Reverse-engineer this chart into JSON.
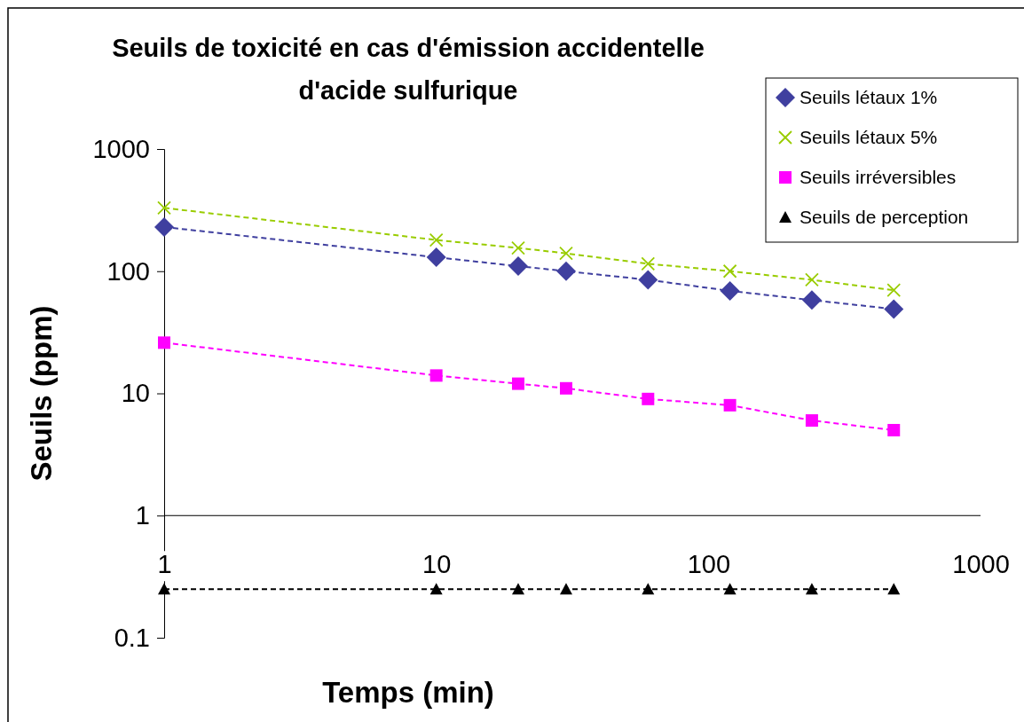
{
  "chart_data": {
    "type": "line",
    "title": "Seuils de toxicité en cas d'émission accidentelle\nd'acide sulfurique",
    "xlabel": "Temps (min)",
    "ylabel": "Seuils (ppm)",
    "log": "xy",
    "x": [
      1,
      10,
      20,
      30,
      60,
      120,
      240,
      480
    ],
    "xlim": [
      1,
      1000
    ],
    "xticks": [
      1,
      10,
      100,
      1000
    ],
    "ylim": [
      0.1,
      1000
    ],
    "yticks": [
      0.1,
      1,
      10,
      100,
      1000
    ],
    "grid": false,
    "legend": "top right",
    "line_style": "dashed",
    "ref_lines": [
      {
        "axis": "y",
        "value": 1,
        "color": "#000000"
      }
    ],
    "series": [
      {
        "name": "Seuils létaux 1%",
        "color": "#3f3f9f",
        "marker": "diamond",
        "values": [
          230,
          130,
          110,
          100,
          85,
          69,
          58,
          49
        ]
      },
      {
        "name": "Seuils létaux 5%",
        "color": "#99cc00",
        "marker": "cross",
        "values": [
          330,
          180,
          155,
          140,
          115,
          100,
          85,
          70
        ]
      },
      {
        "name": "Seuils irréversibles",
        "color": "#ff00ff",
        "marker": "square",
        "values": [
          26,
          14,
          12,
          11,
          9,
          8,
          6,
          5
        ]
      },
      {
        "name": "Seuils de perception",
        "color": "#000000",
        "marker": "triangle",
        "values": [
          0.25,
          0.25,
          0.25,
          0.25,
          0.25,
          0.25,
          0.25,
          0.25
        ]
      }
    ]
  }
}
